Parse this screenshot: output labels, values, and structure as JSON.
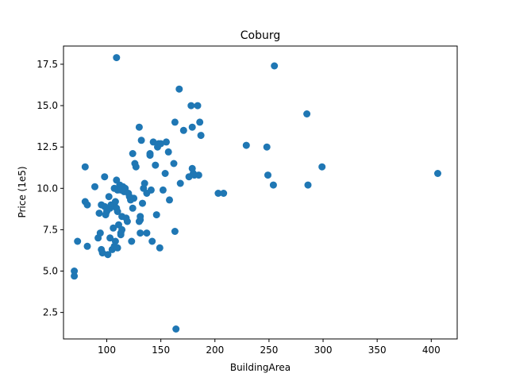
{
  "chart_data": {
    "type": "scatter",
    "title": "Coburg",
    "xlabel": "BuildingArea",
    "ylabel": "Price (1e5)",
    "xlim": [
      60,
      424
    ],
    "ylim": [
      0.9,
      18.6
    ],
    "x_ticks": [
      100,
      150,
      200,
      250,
      300,
      350,
      400
    ],
    "x_tick_labels": [
      "100",
      "150",
      "200",
      "250",
      "300",
      "350",
      "400"
    ],
    "y_ticks": [
      2.5,
      5.0,
      7.5,
      10.0,
      12.5,
      15.0,
      17.5
    ],
    "y_tick_labels": [
      "2.5",
      "5.0",
      "7.5",
      "10.0",
      "12.5",
      "15.0",
      "17.5"
    ],
    "grid": false,
    "marker_color": "#1f77b4",
    "points": [
      [
        70,
        4.7
      ],
      [
        70,
        5.0
      ],
      [
        73,
        6.8
      ],
      [
        80,
        11.3
      ],
      [
        80,
        9.2
      ],
      [
        82,
        9.0
      ],
      [
        82,
        6.5
      ],
      [
        89,
        10.1
      ],
      [
        92,
        7.0
      ],
      [
        93,
        8.5
      ],
      [
        94,
        7.3
      ],
      [
        95,
        9.0
      ],
      [
        95,
        6.3
      ],
      [
        96,
        6.1
      ],
      [
        98,
        10.7
      ],
      [
        98,
        8.9
      ],
      [
        99,
        8.4
      ],
      [
        100,
        8.6
      ],
      [
        101,
        6.0
      ],
      [
        102,
        9.5
      ],
      [
        103,
        7.0
      ],
      [
        103,
        8.8
      ],
      [
        104,
        9.0
      ],
      [
        105,
        6.3
      ],
      [
        106,
        7.6
      ],
      [
        107,
        10.0
      ],
      [
        107,
        9.0
      ],
      [
        107,
        6.5
      ],
      [
        108,
        9.2
      ],
      [
        108,
        6.8
      ],
      [
        109,
        17.9
      ],
      [
        109,
        10.5
      ],
      [
        109,
        8.8
      ],
      [
        110,
        8.6
      ],
      [
        110,
        9.9
      ],
      [
        110,
        6.4
      ],
      [
        111,
        7.8
      ],
      [
        112,
        10.2
      ],
      [
        113,
        9.9
      ],
      [
        113,
        7.3
      ],
      [
        113,
        7.2
      ],
      [
        114,
        7.5
      ],
      [
        114,
        8.3
      ],
      [
        115,
        10.1
      ],
      [
        116,
        9.8
      ],
      [
        117,
        10.0
      ],
      [
        118,
        8.2
      ],
      [
        119,
        8.0
      ],
      [
        120,
        9.7
      ],
      [
        121,
        9.5
      ],
      [
        122,
        9.3
      ],
      [
        123,
        6.8
      ],
      [
        124,
        8.8
      ],
      [
        124,
        12.1
      ],
      [
        125,
        9.4
      ],
      [
        126,
        11.5
      ],
      [
        127,
        11.3
      ],
      [
        130,
        13.7
      ],
      [
        130,
        8.0
      ],
      [
        131,
        8.1
      ],
      [
        131,
        8.3
      ],
      [
        131,
        7.3
      ],
      [
        132,
        12.9
      ],
      [
        133,
        9.1
      ],
      [
        134,
        10.0
      ],
      [
        135,
        10.3
      ],
      [
        137,
        7.3
      ],
      [
        137,
        9.7
      ],
      [
        140,
        12.0
      ],
      [
        140,
        12.1
      ],
      [
        141,
        9.9
      ],
      [
        142,
        6.8
      ],
      [
        143,
        12.8
      ],
      [
        145,
        11.4
      ],
      [
        146,
        8.4
      ],
      [
        147,
        12.5
      ],
      [
        148,
        12.7
      ],
      [
        149,
        6.4
      ],
      [
        150,
        12.7
      ],
      [
        152,
        9.9
      ],
      [
        154,
        10.9
      ],
      [
        155,
        12.8
      ],
      [
        157,
        12.2
      ],
      [
        158,
        9.3
      ],
      [
        162,
        11.5
      ],
      [
        163,
        14.0
      ],
      [
        163,
        7.4
      ],
      [
        164,
        1.5
      ],
      [
        167,
        16.0
      ],
      [
        168,
        10.3
      ],
      [
        171,
        13.5
      ],
      [
        176,
        10.7
      ],
      [
        178,
        15.0
      ],
      [
        179,
        13.7
      ],
      [
        179,
        11.2
      ],
      [
        180,
        10.9
      ],
      [
        181,
        10.8
      ],
      [
        184,
        15.0
      ],
      [
        185,
        10.8
      ],
      [
        186,
        14.0
      ],
      [
        187,
        13.2
      ],
      [
        203,
        9.7
      ],
      [
        208,
        9.7
      ],
      [
        229,
        12.6
      ],
      [
        248,
        12.5
      ],
      [
        249,
        10.8
      ],
      [
        254,
        10.2
      ],
      [
        255,
        17.4
      ],
      [
        285,
        14.5
      ],
      [
        286,
        10.2
      ],
      [
        299,
        11.3
      ],
      [
        406,
        10.9
      ]
    ]
  }
}
